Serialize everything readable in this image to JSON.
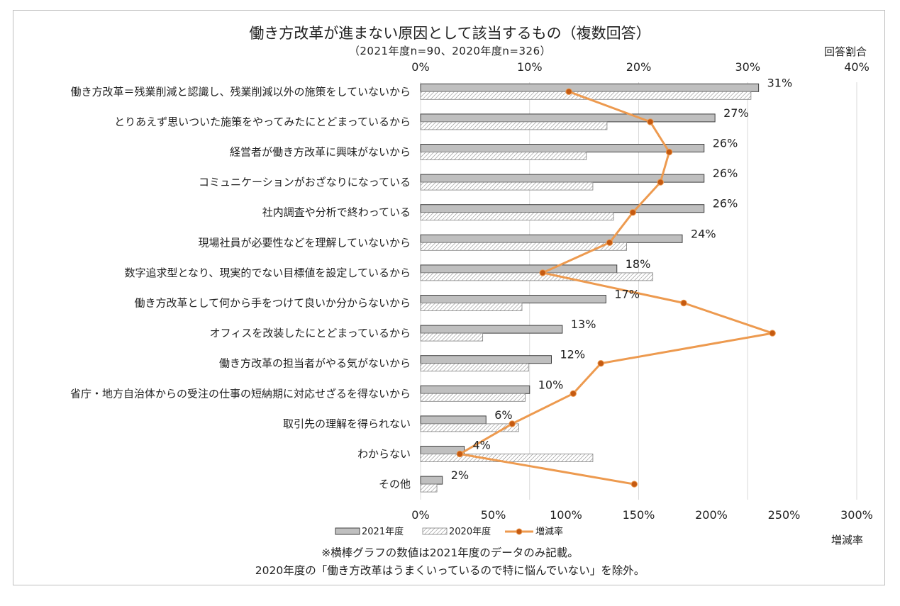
{
  "title": "働き方改革が進まない原因として該当するもの（複数回答）",
  "subtitle": "（2021年度n=90、2020年度n=326）",
  "top_axis_title": "回答割合",
  "bottom_axis_title": "増減率",
  "notes": [
    "※横棒グラフの数値は2021年度のデータのみ記載。",
    "2020年度の「働き方改革はうまくいっているので特に悩んでいない」を除外。"
  ],
  "colors": {
    "bar_2021": "#bfbfbf",
    "bar_2021_border": "#404040",
    "bar_2020_hatch": "#7f7f7f",
    "line": "#ed9a4f",
    "marker": "#c55a11",
    "grid": "#d9d9d9"
  },
  "chart_data": {
    "type": "bar",
    "orientation": "horizontal",
    "categories": [
      "働き方改革＝残業削減と認識し、残業削減以外の施策をしていないから",
      "とりあえず思いついた施策をやってみたにとどまっているから",
      "経営者が働き方改革に興味がないから",
      "コミュニケーションがおざなりになっている",
      "社内調査や分析で終わっている",
      "現場社員が必要性などを理解していないから",
      "数字追求型となり、現実的でない目標値を設定しているから",
      "働き方改革として何から手をつけて良いか分からないから",
      "オフィスを改装したにとどまっているから",
      "働き方改革の担当者がやる気がないから",
      "省庁・地方自治体からの受注の仕事の短納期に対応せざるを得ないから",
      "取引先の理解を得られない",
      "わからない",
      "その他"
    ],
    "series": [
      {
        "name": "2021年度",
        "axis": "top",
        "values": [
          31,
          27,
          26,
          26,
          26,
          24,
          18,
          17,
          13,
          12,
          10,
          6,
          4,
          2
        ]
      },
      {
        "name": "2020年度",
        "axis": "top",
        "values": [
          30.3,
          17.1,
          15.2,
          15.8,
          17.7,
          18.9,
          21.3,
          9.3,
          5.7,
          9.9,
          9.6,
          9.0,
          15.8,
          1.5
        ]
      },
      {
        "name": "増減率",
        "type": "line",
        "axis": "bottom",
        "values": [
          102,
          158,
          171,
          165,
          146,
          130,
          84,
          181,
          242,
          124,
          105,
          63,
          27,
          147
        ]
      }
    ],
    "data_labels": [
      "31%",
      "27%",
      "26%",
      "26%",
      "26%",
      "24%",
      "18%",
      "17%",
      "13%",
      "12%",
      "10%",
      "6%",
      "4%",
      "2%"
    ],
    "top_axis": {
      "min": 0,
      "max": 40,
      "ticks": [
        "0%",
        "10%",
        "20%",
        "30%",
        "40%"
      ]
    },
    "bottom_axis": {
      "min": 0,
      "max": 300,
      "ticks": [
        "0%",
        "50%",
        "100%",
        "150%",
        "200%",
        "250%",
        "300%"
      ]
    },
    "grid": true,
    "legend_position": "bottom-left"
  }
}
